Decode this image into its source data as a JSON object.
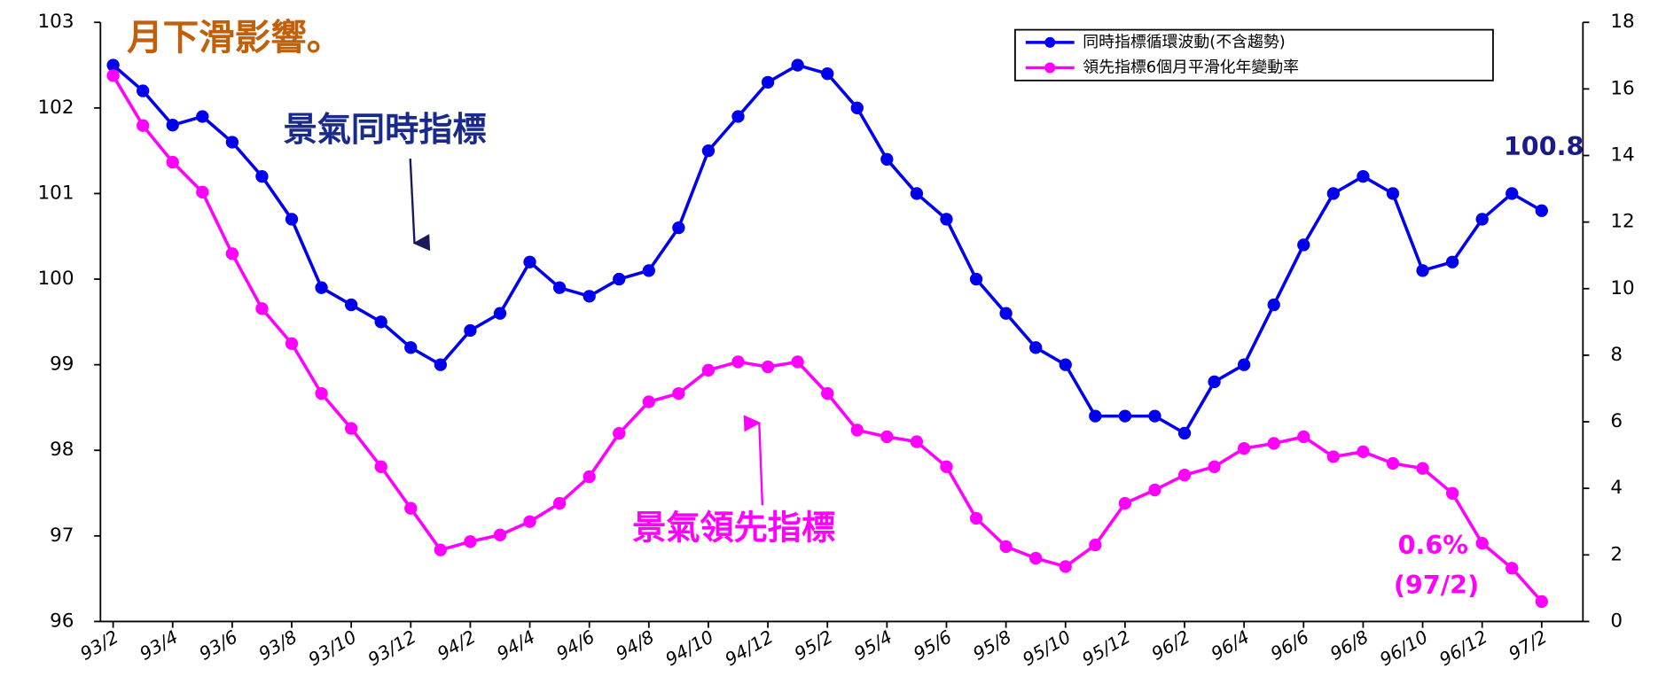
{
  "chart_data": {
    "type": "line",
    "title": "月下滑影響。",
    "annotations": [
      "景氣同時指標",
      "景氣領先指標",
      "100.8",
      "0.6%",
      "(97/2)"
    ],
    "categories": [
      "93/2",
      null,
      "93/4",
      null,
      "93/6",
      null,
      "93/8",
      null,
      "93/10",
      null,
      "93/12",
      null,
      "94/2",
      null,
      "94/4",
      null,
      "94/6",
      null,
      "94/8",
      null,
      "94/10",
      null,
      "94/12",
      null,
      "95/2",
      null,
      "95/4",
      null,
      "95/6",
      null,
      "95/8",
      null,
      "95/10",
      null,
      "95/12",
      null,
      "96/2",
      null,
      "96/4",
      null,
      "96/6",
      null,
      "96/8",
      null,
      "96/10",
      null,
      "96/12",
      null,
      "97/2"
    ],
    "series": [
      {
        "name": "同時指標循環波動(不含趨勢)",
        "color": "#0000ee",
        "values": [
          102.5,
          102.2,
          101.8,
          101.9,
          101.6,
          101.2,
          100.7,
          99.9,
          99.7,
          99.5,
          99.2,
          99.0,
          99.4,
          99.6,
          100.2,
          99.9,
          99.8,
          100.0,
          100.1,
          100.6,
          101.5,
          101.9,
          102.3,
          102.5,
          102.4,
          102.0,
          101.4,
          101.0,
          100.7,
          100.0,
          99.6,
          99.2,
          99.0,
          98.4,
          98.4,
          98.4,
          98.2,
          98.8,
          99.0,
          99.7,
          100.4,
          101.0,
          101.2,
          101.0,
          100.1,
          100.2,
          100.7,
          101.0,
          100.8
        ]
      },
      {
        "name": "領先指標6個月平滑化年變動率",
        "color": "#ff00ff",
        "axis": "y2",
        "values": [
          16.4,
          14.9,
          13.8,
          12.9,
          11.05,
          9.4,
          8.35,
          6.85,
          5.8,
          4.65,
          3.4,
          2.15,
          2.4,
          2.6,
          3.0,
          3.55,
          4.35,
          5.65,
          6.6,
          6.85,
          7.55,
          7.8,
          7.65,
          7.8,
          6.85,
          5.75,
          5.55,
          5.4,
          4.65,
          3.1,
          2.25,
          1.9,
          1.65,
          2.3,
          3.55,
          3.95,
          4.4,
          4.65,
          5.2,
          5.35,
          5.55,
          4.95,
          5.1,
          4.75,
          4.6,
          3.85,
          2.35,
          1.6,
          0.6
        ]
      }
    ],
    "ylim": [
      96,
      103
    ],
    "yticks": [
      96,
      97,
      98,
      99,
      100,
      101,
      102,
      103
    ],
    "y2lim": [
      0,
      18
    ],
    "y2ticks": [
      0,
      2,
      4,
      6,
      8,
      10,
      12,
      14,
      16,
      18
    ],
    "grid": false,
    "legend": "top-right"
  }
}
